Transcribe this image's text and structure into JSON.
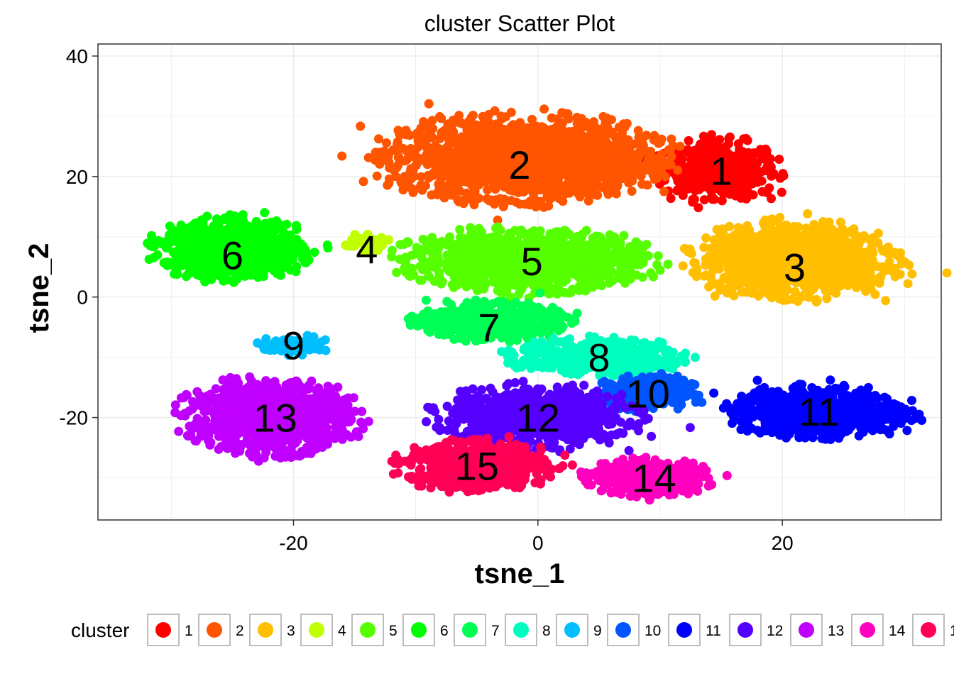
{
  "chart_data": {
    "type": "scatter",
    "title": "cluster Scatter Plot",
    "xlabel": "tsne_1",
    "ylabel": "tsne_2",
    "xlim": [
      -36,
      33
    ],
    "ylim": [
      -37,
      42
    ],
    "x_ticks": [
      -20,
      0,
      20
    ],
    "y_ticks": [
      -20,
      0,
      20,
      40
    ],
    "grid": true,
    "legend_title": "cluster",
    "legend_position": "bottom",
    "clusters": [
      {
        "name": "1",
        "color": "#FF0000",
        "center": [
          15,
          21
        ],
        "spread": [
          5,
          5
        ],
        "count": 450
      },
      {
        "name": "2",
        "color": "#FF5500",
        "center": [
          -1,
          23
        ],
        "spread": [
          11,
          7
        ],
        "count": 1700
      },
      {
        "name": "3",
        "color": "#FFBF00",
        "center": [
          21,
          6
        ],
        "spread": [
          8,
          6
        ],
        "count": 1200
      },
      {
        "name": "4",
        "color": "#BFFF00",
        "center": [
          -14,
          9
        ],
        "spread": [
          2,
          1.5
        ],
        "count": 60
      },
      {
        "name": "5",
        "color": "#55FF00",
        "center": [
          -1,
          6
        ],
        "spread": [
          10,
          5
        ],
        "count": 1100
      },
      {
        "name": "6",
        "color": "#00FF00",
        "center": [
          -25,
          8
        ],
        "spread": [
          6,
          5
        ],
        "count": 900
      },
      {
        "name": "7",
        "color": "#00FF55",
        "center": [
          -4,
          -4
        ],
        "spread": [
          6,
          3
        ],
        "count": 600
      },
      {
        "name": "8",
        "color": "#00FFBF",
        "center": [
          5,
          -10
        ],
        "spread": [
          7,
          3
        ],
        "count": 500
      },
      {
        "name": "9",
        "color": "#00BFFF",
        "center": [
          -20,
          -8
        ],
        "spread": [
          3,
          1.5
        ],
        "count": 80
      },
      {
        "name": "10",
        "color": "#0055FF",
        "center": [
          9,
          -16
        ],
        "spread": [
          4,
          3
        ],
        "count": 300
      },
      {
        "name": "11",
        "color": "#0000FF",
        "center": [
          23,
          -19
        ],
        "spread": [
          7,
          4
        ],
        "count": 900
      },
      {
        "name": "12",
        "color": "#5500FF",
        "center": [
          0,
          -20
        ],
        "spread": [
          8,
          5
        ],
        "count": 800
      },
      {
        "name": "13",
        "color": "#BF00FF",
        "center": [
          -22,
          -20
        ],
        "spread": [
          7,
          6
        ],
        "count": 1000
      },
      {
        "name": "14",
        "color": "#FF00BF",
        "center": [
          9,
          -30
        ],
        "spread": [
          5,
          3
        ],
        "count": 400
      },
      {
        "name": "15",
        "color": "#FF0055",
        "center": [
          -5,
          -28
        ],
        "spread": [
          6,
          4
        ],
        "count": 800
      }
    ],
    "labels": [
      {
        "text": "2",
        "x": -1.5,
        "y": 22
      },
      {
        "text": "1",
        "x": 15,
        "y": 21
      },
      {
        "text": "6",
        "x": -25,
        "y": 7
      },
      {
        "text": "4",
        "x": -14,
        "y": 8
      },
      {
        "text": "5",
        "x": -0.5,
        "y": 6
      },
      {
        "text": "3",
        "x": 21,
        "y": 5
      },
      {
        "text": "7",
        "x": -4,
        "y": -5
      },
      {
        "text": "8",
        "x": 5,
        "y": -10
      },
      {
        "text": "9",
        "x": -20,
        "y": -8
      },
      {
        "text": "10",
        "x": 9,
        "y": -16
      },
      {
        "text": "11",
        "x": 23,
        "y": -19
      },
      {
        "text": "12",
        "x": 0,
        "y": -20
      },
      {
        "text": "13",
        "x": -21.5,
        "y": -20
      },
      {
        "text": "15",
        "x": -5,
        "y": -28
      },
      {
        "text": "14",
        "x": 9.5,
        "y": -30
      }
    ]
  }
}
